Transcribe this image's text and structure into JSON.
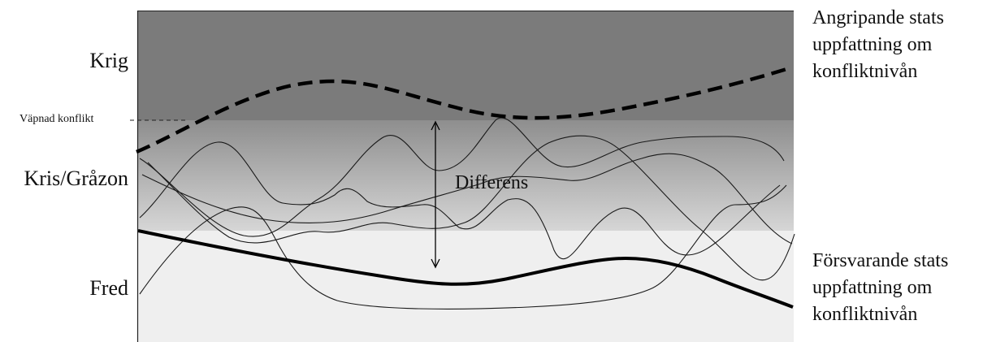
{
  "levels": {
    "krig": "Krig",
    "vapnad_konflikt": "Väpnad konflikt",
    "kris_grazon": "Kris/Gråzon",
    "fred": "Fred"
  },
  "curves": {
    "angripande_line1": "Angripande stats",
    "angripande_line2": "uppfattning om",
    "angripande_line3": "konfliktnivån",
    "forsvarande_line1": "Försvarande stats",
    "forsvarande_line2": "uppfattning om",
    "forsvarande_line3": "konfliktnivån"
  },
  "annotation": {
    "differens": "Differens"
  },
  "colors": {
    "war_zone": "#7b7b7b",
    "gray_zone_top": "#8e8e8e",
    "gray_zone_bottom": "#d6d6d6",
    "peace_zone": "#efefef"
  }
}
